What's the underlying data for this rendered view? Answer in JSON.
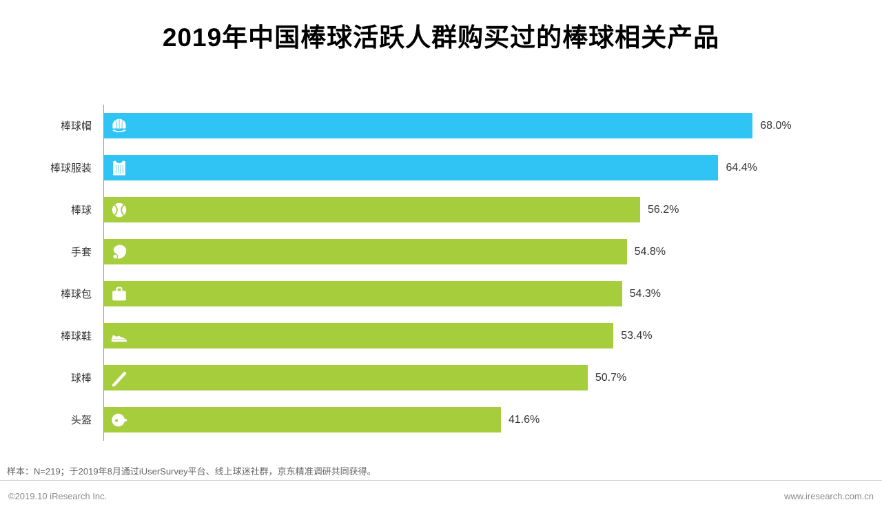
{
  "title": "2019年中国棒球活跃人群购买过的棒球相关产品",
  "chart_data": {
    "type": "bar",
    "orientation": "horizontal",
    "title": "2019年中国棒球活跃人群购买过的棒球相关产品",
    "categories": [
      "棒球帽",
      "棒球服装",
      "棒球",
      "手套",
      "棒球包",
      "棒球鞋",
      "球棒",
      "头盔"
    ],
    "values": [
      68.0,
      64.4,
      56.2,
      54.8,
      54.3,
      53.4,
      50.7,
      41.6
    ],
    "value_labels": [
      "68.0%",
      "64.4%",
      "56.2%",
      "54.8%",
      "54.3%",
      "53.4%",
      "50.7%",
      "41.6%"
    ],
    "bar_colors": [
      "#2FC4F3",
      "#2FC4F3",
      "#A5CD3C",
      "#A5CD3C",
      "#A5CD3C",
      "#A5CD3C",
      "#A5CD3C",
      "#A5CD3C"
    ],
    "icons": [
      "cap-icon",
      "jersey-icon",
      "baseball-icon",
      "glove-icon",
      "bag-icon",
      "shoe-icon",
      "bat-icon",
      "helmet-icon"
    ],
    "xlim": [
      0,
      70
    ],
    "grid": false,
    "legend": false
  },
  "footnote": "样本：N=219；于2019年8月通过iUserSurvey平台、线上球迷社群，京东精准调研共同获得。",
  "footer": {
    "left": "©2019.10 iResearch Inc.",
    "right": "www.iresearch.com.cn"
  },
  "colors": {
    "cyan": "#2FC4F3",
    "green": "#A5CD3C",
    "title": "#000000",
    "label": "#333333",
    "note": "#666666"
  }
}
